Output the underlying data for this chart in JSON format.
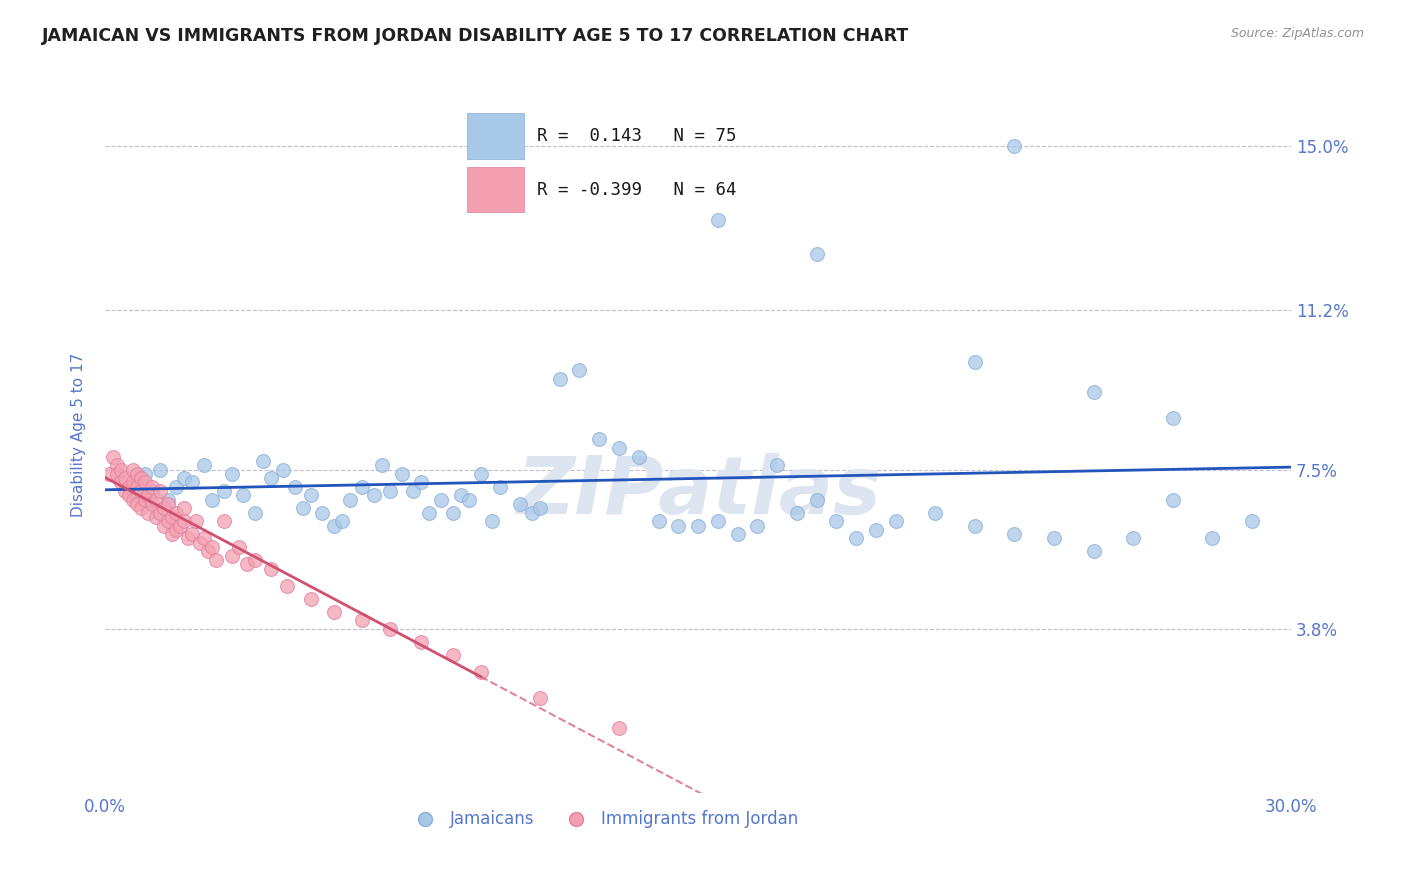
{
  "title": "JAMAICAN VS IMMIGRANTS FROM JORDAN DISABILITY AGE 5 TO 17 CORRELATION CHART",
  "source": "Source: ZipAtlas.com",
  "ylabel": "Disability Age 5 to 17",
  "x_min": 0.0,
  "x_max": 0.3,
  "y_min": 0.0,
  "y_max": 0.166,
  "yticks": [
    0.038,
    0.075,
    0.112,
    0.15
  ],
  "ytick_labels": [
    "3.8%",
    "7.5%",
    "11.2%",
    "15.0%"
  ],
  "xtick_labels": [
    "0.0%",
    "30.0%"
  ],
  "xtick_positions": [
    0.0,
    0.3
  ],
  "r_jamaican": 0.143,
  "n_jamaican": 75,
  "r_jordan": -0.399,
  "n_jordan": 64,
  "legend_labels": [
    "Jamaicans",
    "Immigrants from Jordan"
  ],
  "color_jamaican": "#a8c8e8",
  "color_jordan": "#f4a0b0",
  "trendline_jamaican_color": "#2255bb",
  "trendline_jordan_color": "#d05070",
  "background_color": "#ffffff",
  "grid_color": "#c0c0d0",
  "title_color": "#202020",
  "axis_label_color": "#5577cc",
  "watermark_color": "#dde5f0",
  "jamaican_x": [
    0.008,
    0.01,
    0.012,
    0.014,
    0.016,
    0.018,
    0.02,
    0.022,
    0.025,
    0.027,
    0.03,
    0.032,
    0.035,
    0.038,
    0.04,
    0.042,
    0.045,
    0.048,
    0.05,
    0.052,
    0.055,
    0.058,
    0.06,
    0.062,
    0.065,
    0.068,
    0.07,
    0.072,
    0.075,
    0.078,
    0.08,
    0.082,
    0.085,
    0.088,
    0.09,
    0.092,
    0.095,
    0.098,
    0.1,
    0.105,
    0.108,
    0.11,
    0.115,
    0.12,
    0.125,
    0.13,
    0.135,
    0.14,
    0.145,
    0.15,
    0.155,
    0.16,
    0.165,
    0.17,
    0.175,
    0.18,
    0.185,
    0.19,
    0.195,
    0.2,
    0.21,
    0.22,
    0.23,
    0.24,
    0.25,
    0.26,
    0.27,
    0.28,
    0.29,
    0.155,
    0.18,
    0.22,
    0.25,
    0.27,
    0.23
  ],
  "jamaican_y": [
    0.069,
    0.074,
    0.07,
    0.075,
    0.068,
    0.071,
    0.073,
    0.072,
    0.076,
    0.068,
    0.07,
    0.074,
    0.069,
    0.065,
    0.077,
    0.073,
    0.075,
    0.071,
    0.066,
    0.069,
    0.065,
    0.062,
    0.063,
    0.068,
    0.071,
    0.069,
    0.076,
    0.07,
    0.074,
    0.07,
    0.072,
    0.065,
    0.068,
    0.065,
    0.069,
    0.068,
    0.074,
    0.063,
    0.071,
    0.067,
    0.065,
    0.066,
    0.096,
    0.098,
    0.082,
    0.08,
    0.078,
    0.063,
    0.062,
    0.062,
    0.063,
    0.06,
    0.062,
    0.076,
    0.065,
    0.068,
    0.063,
    0.059,
    0.061,
    0.063,
    0.065,
    0.062,
    0.06,
    0.059,
    0.056,
    0.059,
    0.068,
    0.059,
    0.063,
    0.133,
    0.125,
    0.1,
    0.093,
    0.087,
    0.15
  ],
  "jordan_x": [
    0.001,
    0.002,
    0.003,
    0.003,
    0.004,
    0.004,
    0.005,
    0.005,
    0.006,
    0.006,
    0.007,
    0.007,
    0.007,
    0.008,
    0.008,
    0.008,
    0.009,
    0.009,
    0.009,
    0.01,
    0.01,
    0.011,
    0.011,
    0.012,
    0.012,
    0.013,
    0.013,
    0.014,
    0.014,
    0.015,
    0.015,
    0.016,
    0.016,
    0.017,
    0.017,
    0.018,
    0.018,
    0.019,
    0.02,
    0.02,
    0.021,
    0.022,
    0.023,
    0.024,
    0.025,
    0.026,
    0.027,
    0.028,
    0.03,
    0.032,
    0.034,
    0.036,
    0.038,
    0.042,
    0.046,
    0.052,
    0.058,
    0.065,
    0.072,
    0.08,
    0.088,
    0.095,
    0.11,
    0.13
  ],
  "jordan_y": [
    0.074,
    0.078,
    0.076,
    0.074,
    0.072,
    0.075,
    0.073,
    0.07,
    0.071,
    0.069,
    0.075,
    0.072,
    0.068,
    0.074,
    0.071,
    0.067,
    0.073,
    0.07,
    0.066,
    0.072,
    0.068,
    0.069,
    0.065,
    0.071,
    0.067,
    0.068,
    0.064,
    0.07,
    0.065,
    0.066,
    0.062,
    0.067,
    0.063,
    0.064,
    0.06,
    0.065,
    0.061,
    0.062,
    0.066,
    0.063,
    0.059,
    0.06,
    0.063,
    0.058,
    0.059,
    0.056,
    0.057,
    0.054,
    0.063,
    0.055,
    0.057,
    0.053,
    0.054,
    0.052,
    0.048,
    0.045,
    0.042,
    0.04,
    0.038,
    0.035,
    0.032,
    0.028,
    0.022,
    0.015
  ]
}
